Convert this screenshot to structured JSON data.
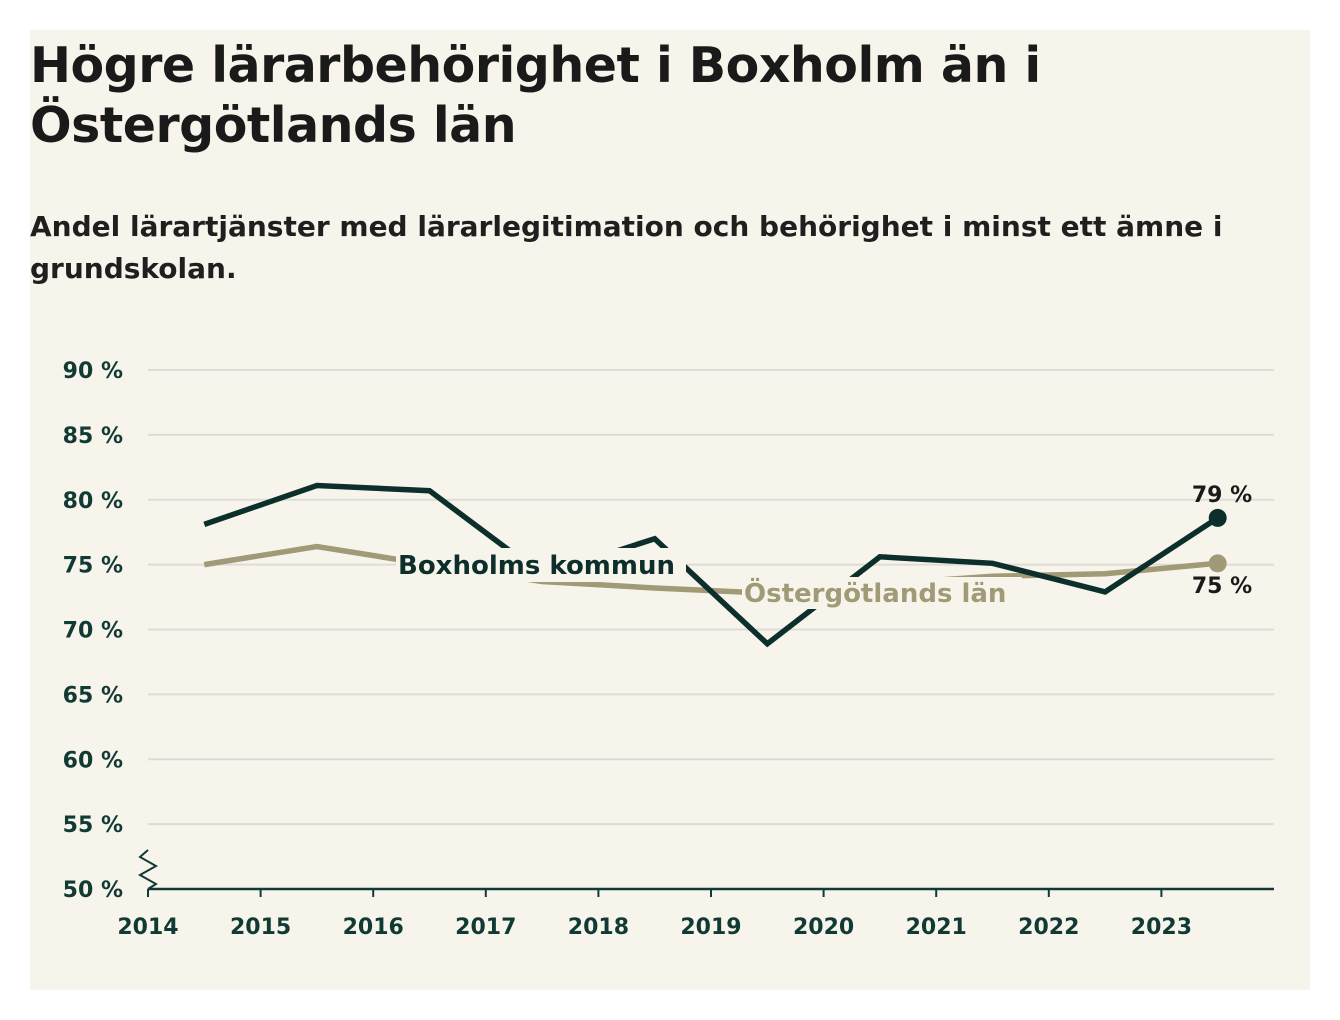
{
  "title": "Högre lärarbehörighet i Boxholm än i Östergötlands län",
  "subtitle": "Andel lärartjänster med lärarlegitimation och behörighet i minst ett ämne i grundskolan.",
  "colors": {
    "background": "#f7f5eb",
    "boxholm": "#0d2f2b",
    "ostergotland": "#a09a76",
    "grid": "#dedcd6",
    "axis": "#123a35"
  },
  "chart_data": {
    "type": "line",
    "title": "Högre lärarbehörighet i Boxholm än i Östergötlands län",
    "subtitle": "Andel lärartjänster med lärarlegitimation och behörighet i minst ett ämne i grundskolan.",
    "xlabel": "",
    "ylabel": "",
    "xlim": [
      2014,
      2024
    ],
    "ylim": [
      50,
      90
    ],
    "x_ticks": [
      "2014",
      "2015",
      "2016",
      "2017",
      "2018",
      "2019",
      "2020",
      "2021",
      "2022",
      "2023"
    ],
    "y_ticks": [
      "90 %",
      "85 %",
      "80 %",
      "75 %",
      "70 %",
      "65 %",
      "60 %",
      "55 %",
      "50 %"
    ],
    "y_tick_values": [
      90,
      85,
      80,
      75,
      70,
      65,
      60,
      55,
      50
    ],
    "grid": true,
    "axis_break": true,
    "series": [
      {
        "name": "Boxholms kommun",
        "color": "#0d2f2b",
        "x": [
          2014.5,
          2015.5,
          2016.5,
          2017.5,
          2018.5,
          2019.5,
          2020.5,
          2021.5,
          2022.5,
          2023.5
        ],
        "values": [
          78.1,
          81.1,
          80.7,
          74.2,
          77.0,
          68.9,
          75.6,
          75.1,
          72.9,
          78.6
        ],
        "label": "Boxholms kommun",
        "end_label": "79 %"
      },
      {
        "name": "Östergötlands län",
        "color": "#a09a76",
        "x": [
          2014.5,
          2015.5,
          2016.5,
          2017.5,
          2018.5,
          2019.5,
          2020.5,
          2021.5,
          2022.5,
          2023.5
        ],
        "values": [
          75.0,
          76.4,
          75.0,
          73.7,
          73.2,
          72.8,
          73.5,
          74.1,
          74.3,
          75.1
        ],
        "label": "Östergötlands län",
        "end_label": "75 %"
      }
    ]
  }
}
